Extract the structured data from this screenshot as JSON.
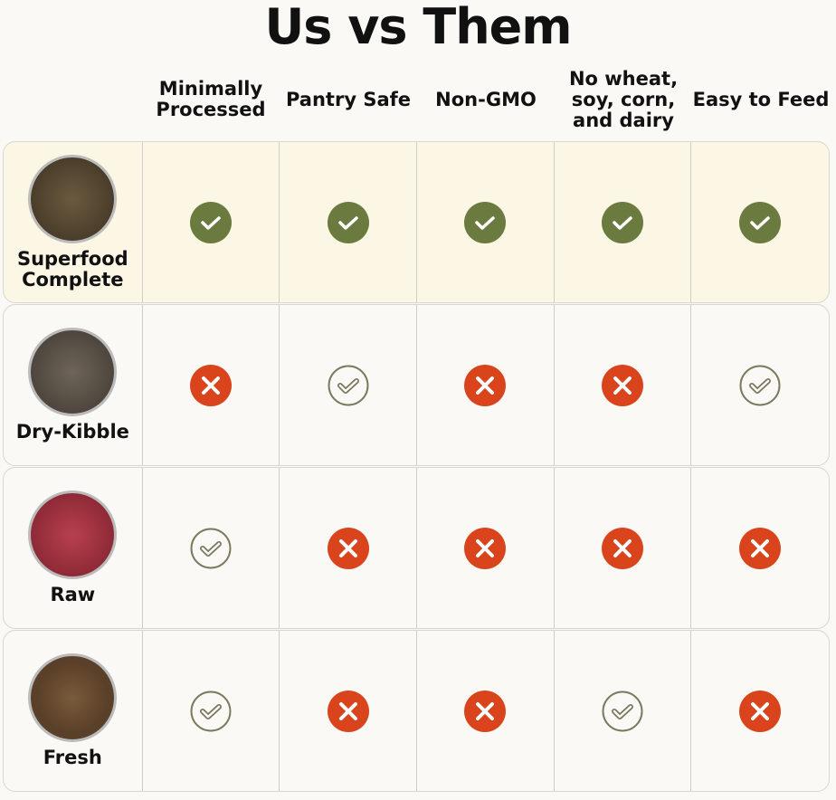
{
  "title": "Us vs Them",
  "columns": [
    "Minimally Processed",
    "Pantry Safe",
    "Non-GMO",
    "No wheat, soy, corn, and dairy",
    "Easy to Feed"
  ],
  "colors": {
    "check_filled": "#6b7a3e",
    "check_outline": "#7a7a5e",
    "cross": "#d9441c",
    "highlight_row": "#fbf7e4"
  },
  "rows": [
    {
      "label": "Superfood Complete",
      "image": "kibble-chunks-bowl",
      "highlight": true,
      "values": [
        "check-filled",
        "check-filled",
        "check-filled",
        "check-filled",
        "check-filled"
      ]
    },
    {
      "label": "Dry-Kibble",
      "image": "dry-kibble-bowl",
      "highlight": false,
      "values": [
        "cross",
        "check-outline",
        "cross",
        "cross",
        "check-outline"
      ]
    },
    {
      "label": "Raw",
      "image": "raw-meat-bowl",
      "highlight": false,
      "values": [
        "check-outline",
        "cross",
        "cross",
        "cross",
        "cross"
      ]
    },
    {
      "label": "Fresh",
      "image": "fresh-food-bowl",
      "highlight": false,
      "values": [
        "check-outline",
        "cross",
        "cross",
        "check-outline",
        "cross"
      ]
    }
  ]
}
